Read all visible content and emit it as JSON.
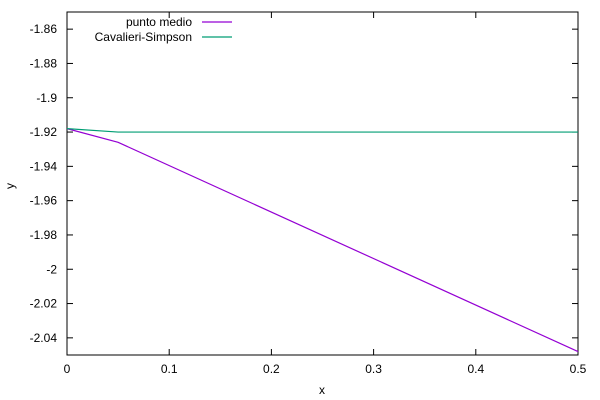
{
  "chart_data": {
    "type": "line",
    "xlabel": "x",
    "ylabel": "y",
    "xlim": [
      0,
      0.5
    ],
    "ylim": [
      -2.05,
      -1.85
    ],
    "x_ticks": [
      0,
      0.1,
      0.2,
      0.3,
      0.4,
      0.5
    ],
    "x_tick_labels": [
      "0",
      "0.1",
      "0.2",
      "0.3",
      "0.4",
      "0.5"
    ],
    "y_ticks": [
      -1.86,
      -1.88,
      -1.9,
      -1.92,
      -1.94,
      -1.96,
      -1.98,
      -2,
      -2.02,
      -2.04
    ],
    "y_tick_labels": [
      "-1.86",
      "-1.88",
      "-1.9",
      "-1.92",
      "-1.94",
      "-1.96",
      "-1.98",
      "-2",
      "-2.02",
      "-2.04"
    ],
    "grid": false,
    "legend_position": "top-left",
    "series": [
      {
        "name": "punto medio",
        "color": "#9400d3",
        "x": [
          0,
          0.05,
          0.5
        ],
        "y": [
          -1.918,
          -1.926,
          -2.048
        ]
      },
      {
        "name": "Cavalieri-Simpson",
        "color": "#009e73",
        "x": [
          0,
          0.05,
          0.5
        ],
        "y": [
          -1.918,
          -1.92,
          -1.92
        ]
      }
    ]
  }
}
